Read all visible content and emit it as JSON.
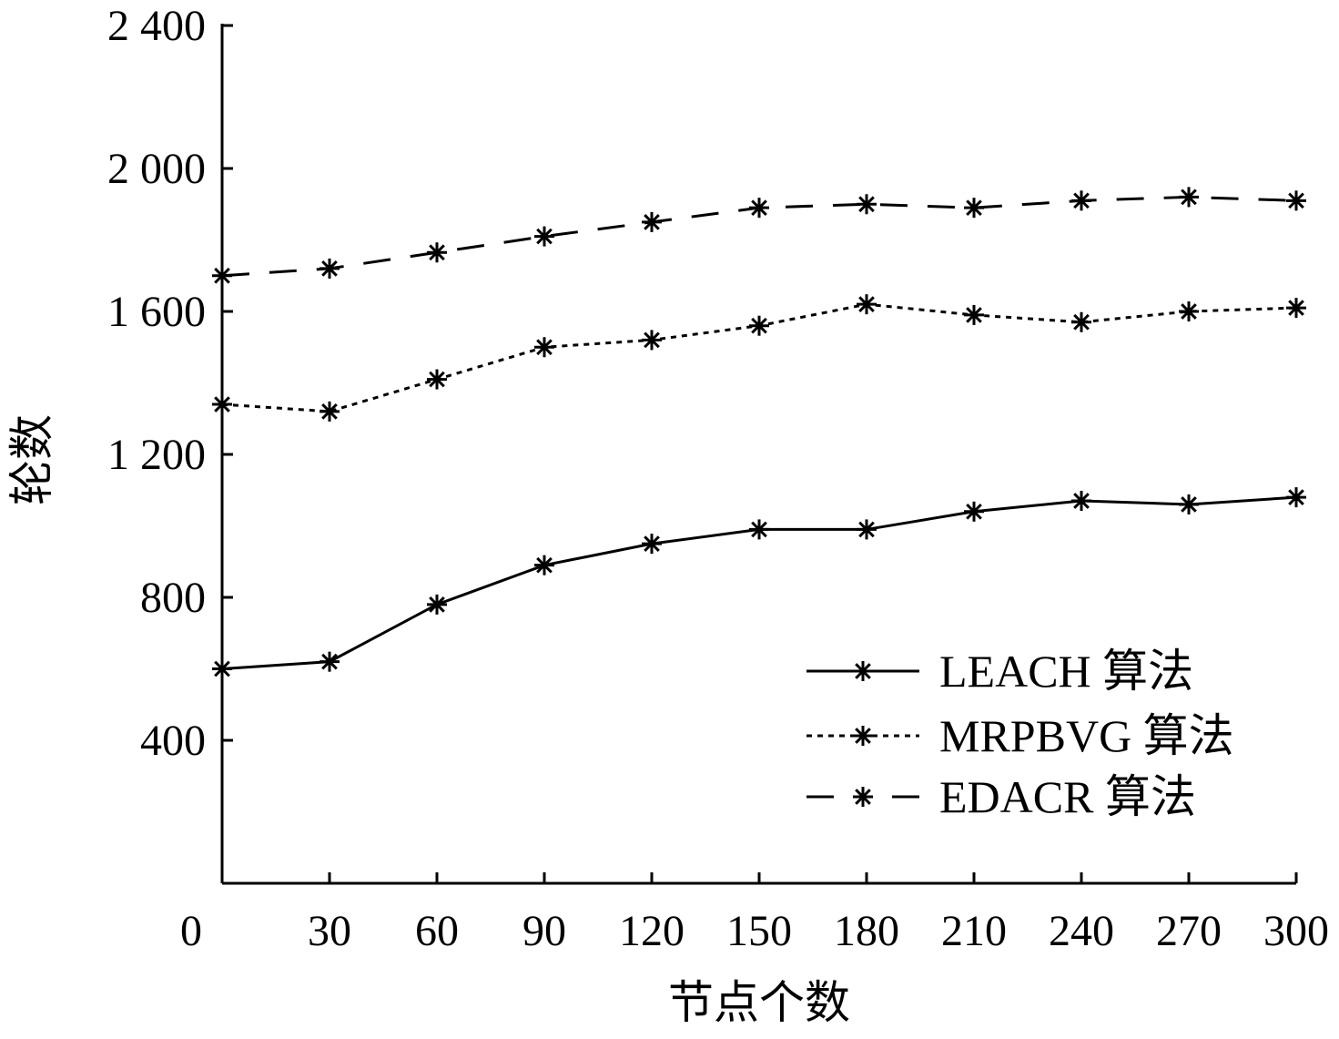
{
  "chart_data": {
    "type": "line",
    "title": "",
    "xlabel": "节点个数",
    "ylabel": "轮数",
    "x": [
      0,
      30,
      60,
      90,
      120,
      150,
      180,
      210,
      240,
      270,
      300
    ],
    "xticks": [
      "0",
      "30",
      "60",
      "90",
      "120",
      "150",
      "180",
      "210",
      "240",
      "270",
      "300"
    ],
    "yticks": [
      {
        "value": 400,
        "label": "400"
      },
      {
        "value": 800,
        "label": "800"
      },
      {
        "value": 1200,
        "label": "1 200"
      },
      {
        "value": 1600,
        "label": "1 600"
      },
      {
        "value": 2000,
        "label": "2 000"
      },
      {
        "value": 2400,
        "label": "2 400"
      }
    ],
    "xlim": [
      0,
      300
    ],
    "ylim": [
      0,
      2400
    ],
    "grid": false,
    "legend_position": "bottom-right",
    "series": [
      {
        "name": "LEACH 算法",
        "dash": "solid",
        "values": [
          600,
          620,
          780,
          890,
          950,
          990,
          990,
          1040,
          1070,
          1060,
          1080
        ]
      },
      {
        "name": "MRPBVG 算法",
        "dash": "dotted",
        "values": [
          1340,
          1320,
          1410,
          1500,
          1520,
          1560,
          1620,
          1590,
          1570,
          1600,
          1610
        ]
      },
      {
        "name": "EDACR 算法",
        "dash": "dashed",
        "values": [
          1700,
          1720,
          1765,
          1810,
          1850,
          1890,
          1900,
          1890,
          1910,
          1920,
          1910
        ]
      }
    ]
  }
}
